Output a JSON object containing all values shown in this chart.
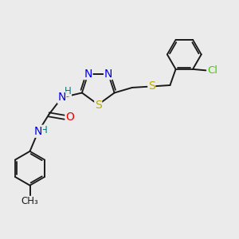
{
  "bg_color": "#ebebeb",
  "bond_color": "#1a1a1a",
  "atom_colors": {
    "N": "#0000ee",
    "S": "#bbaa00",
    "O": "#ee0000",
    "Cl": "#44cc00",
    "H": "#007777",
    "C": "#1a1a1a"
  },
  "figsize": [
    3.0,
    3.0
  ],
  "dpi": 100,
  "xlim": [
    0,
    10
  ],
  "ylim": [
    0,
    10
  ]
}
